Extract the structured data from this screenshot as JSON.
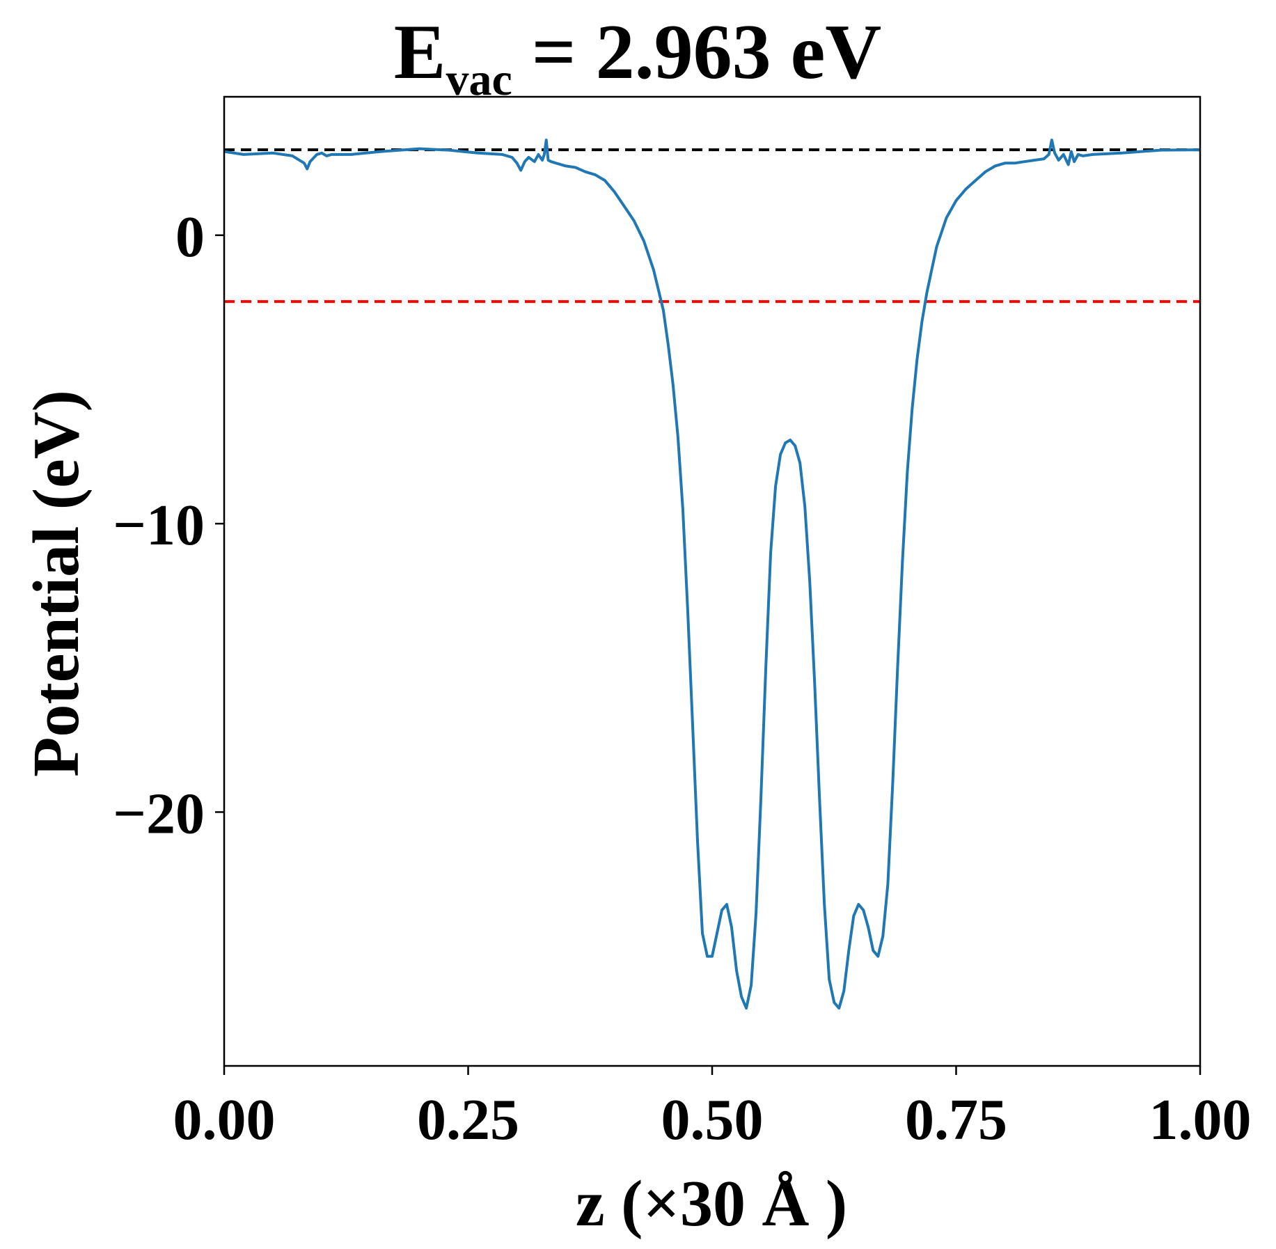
{
  "chart_data": {
    "type": "line",
    "title_main": "E",
    "title_sub": "vac",
    "title_rest": " = 2.963 eV",
    "xlabel": "z (×30 Å )",
    "ylabel": "Potential (eV)",
    "xlim": [
      0,
      1
    ],
    "ylim": [
      -28.8,
      4.8
    ],
    "grid": false,
    "x_ticks": [
      0,
      0.25,
      0.5,
      0.75,
      1.0
    ],
    "x_tick_labels": [
      "0.00",
      "0.25",
      "0.50",
      "0.75",
      "1.00"
    ],
    "y_ticks": [
      0,
      -10,
      -20
    ],
    "y_tick_labels": [
      "0",
      "−10",
      "−20"
    ],
    "reference_lines": [
      {
        "y": 2.963,
        "color": "#000000",
        "style": "dashed"
      },
      {
        "y": -2.3,
        "color": "#ff0000",
        "style": "dashed"
      }
    ],
    "series": [
      {
        "color": "#1f77b4",
        "x": [
          0.0,
          0.02,
          0.05,
          0.07,
          0.082,
          0.085,
          0.088,
          0.095,
          0.1,
          0.105,
          0.11,
          0.13,
          0.16,
          0.2,
          0.23,
          0.26,
          0.285,
          0.295,
          0.3,
          0.304,
          0.308,
          0.312,
          0.318,
          0.322,
          0.326,
          0.328,
          0.33,
          0.332,
          0.335,
          0.34,
          0.35,
          0.36,
          0.37,
          0.38,
          0.39,
          0.4,
          0.41,
          0.42,
          0.43,
          0.44,
          0.45,
          0.455,
          0.46,
          0.465,
          0.47,
          0.475,
          0.48,
          0.485,
          0.49,
          0.495,
          0.5,
          0.505,
          0.51,
          0.515,
          0.52,
          0.525,
          0.53,
          0.535,
          0.54,
          0.545,
          0.55,
          0.555,
          0.56,
          0.565,
          0.57,
          0.575,
          0.58,
          0.585,
          0.59,
          0.595,
          0.6,
          0.605,
          0.61,
          0.615,
          0.62,
          0.625,
          0.63,
          0.635,
          0.64,
          0.645,
          0.65,
          0.655,
          0.66,
          0.665,
          0.67,
          0.675,
          0.68,
          0.685,
          0.69,
          0.695,
          0.7,
          0.705,
          0.71,
          0.715,
          0.72,
          0.725,
          0.73,
          0.74,
          0.75,
          0.76,
          0.77,
          0.78,
          0.79,
          0.8,
          0.81,
          0.82,
          0.83,
          0.84,
          0.845,
          0.848,
          0.851,
          0.855,
          0.86,
          0.865,
          0.868,
          0.871,
          0.875,
          0.88,
          0.89,
          0.92,
          0.96,
          1.0
        ],
        "y": [
          2.9,
          2.8,
          2.85,
          2.75,
          2.5,
          2.3,
          2.55,
          2.8,
          2.85,
          2.75,
          2.8,
          2.8,
          2.9,
          3.0,
          2.95,
          2.85,
          2.8,
          2.7,
          2.5,
          2.25,
          2.55,
          2.7,
          2.55,
          2.8,
          2.6,
          2.8,
          3.3,
          2.6,
          2.55,
          2.5,
          2.4,
          2.35,
          2.2,
          2.1,
          1.9,
          1.5,
          1.0,
          0.5,
          -0.2,
          -1.2,
          -2.6,
          -3.8,
          -5.2,
          -7.0,
          -9.5,
          -13.0,
          -17.0,
          -21.0,
          -24.2,
          -25.0,
          -25.0,
          -24.2,
          -23.4,
          -23.2,
          -24.0,
          -25.5,
          -26.4,
          -26.8,
          -26.0,
          -23.5,
          -19.5,
          -15.0,
          -11.0,
          -8.7,
          -7.6,
          -7.2,
          -7.1,
          -7.3,
          -7.9,
          -9.4,
          -12.0,
          -15.5,
          -19.5,
          -23.2,
          -25.8,
          -26.6,
          -26.8,
          -26.2,
          -24.8,
          -23.6,
          -23.2,
          -23.4,
          -24.0,
          -24.8,
          -25.0,
          -24.3,
          -22.5,
          -19.0,
          -15.0,
          -11.3,
          -8.2,
          -6.0,
          -4.3,
          -3.0,
          -2.0,
          -1.2,
          -0.4,
          0.6,
          1.2,
          1.6,
          1.9,
          2.2,
          2.4,
          2.5,
          2.5,
          2.55,
          2.6,
          2.65,
          2.8,
          3.3,
          2.85,
          2.6,
          2.8,
          2.45,
          2.9,
          2.55,
          2.8,
          2.75,
          2.8,
          2.85,
          2.95,
          2.963
        ]
      }
    ]
  }
}
